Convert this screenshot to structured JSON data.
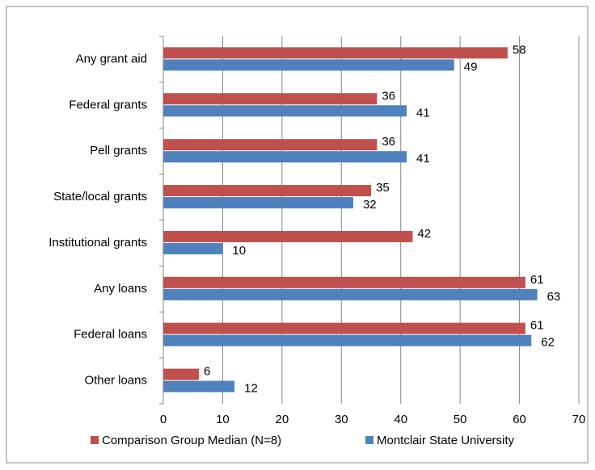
{
  "chart_data": {
    "type": "hbar",
    "categories": [
      "Any grant aid",
      "Federal grants",
      "Pell grants",
      "State/local grants",
      "Institutional grants",
      "Any loans",
      "Federal loans",
      "Other loans"
    ],
    "series": [
      {
        "name": "Comparison Group Median (N=8)",
        "color": "#c0504d",
        "values": [
          58,
          36,
          36,
          35,
          42,
          61,
          61,
          6
        ]
      },
      {
        "name": "Montclair State University",
        "color": "#4f81bd",
        "values": [
          49,
          41,
          41,
          32,
          10,
          63,
          62,
          12
        ]
      }
    ],
    "xlim": [
      0,
      70
    ],
    "xticks": [
      0,
      10,
      20,
      30,
      40,
      50,
      60,
      70
    ],
    "grid": true,
    "legend": "bottom"
  }
}
